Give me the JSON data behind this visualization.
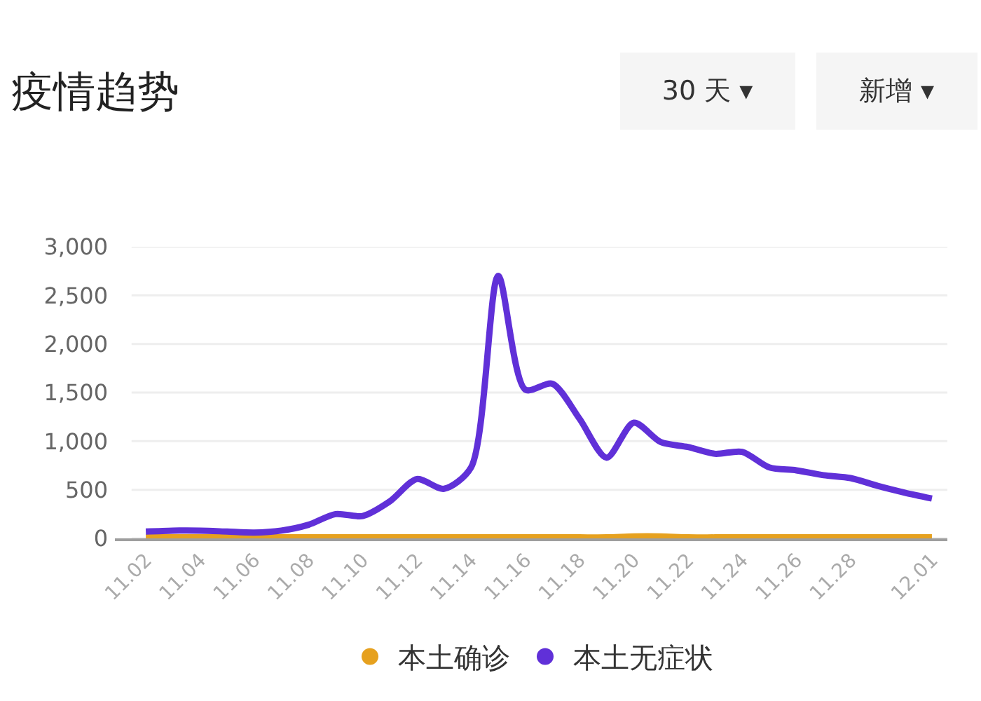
{
  "chart_data": {
    "type": "line",
    "title": "疫情趋势",
    "annotations": [
      "30 天 ▾",
      "新增 ▾"
    ],
    "categories": [
      "11.02",
      null,
      "11.04",
      null,
      "11.06",
      null,
      "11.08",
      null,
      "11.10",
      null,
      "11.12",
      null,
      "11.14",
      null,
      "11.16",
      null,
      "11.18",
      null,
      "11.20",
      null,
      "11.22",
      null,
      "11.24",
      null,
      "11.26",
      null,
      "11.28",
      null,
      null,
      "12.01"
    ],
    "series": [
      {
        "name": "本土确诊",
        "color": "#e6a11f",
        "values": [
          10,
          10,
          10,
          10,
          10,
          10,
          10,
          10,
          10,
          10,
          10,
          10,
          10,
          10,
          10,
          10,
          10,
          10,
          20,
          20,
          10,
          10,
          10,
          10,
          10,
          10,
          10,
          10,
          10,
          10
        ]
      },
      {
        "name": "本土无症状",
        "color": "#6030d8",
        "values": [
          70,
          80,
          80,
          70,
          60,
          80,
          140,
          250,
          230,
          380,
          610,
          510,
          730,
          2700,
          1530,
          1590,
          1230,
          830,
          1190,
          990,
          940,
          870,
          890,
          730,
          700,
          650,
          620,
          540,
          470,
          410
        ]
      }
    ],
    "ylim": [
      0,
      3000
    ],
    "yticks": [
      0,
      500,
      {
        "value": 1000,
        "label": "1,000"
      },
      {
        "value": 1500,
        "label": "1,500"
      },
      {
        "value": 2000,
        "label": "2,000"
      },
      {
        "value": 2500,
        "label": "2,500"
      },
      {
        "value": 3000,
        "label": "3,000"
      }
    ],
    "grid": "y",
    "legend": "bottom"
  }
}
